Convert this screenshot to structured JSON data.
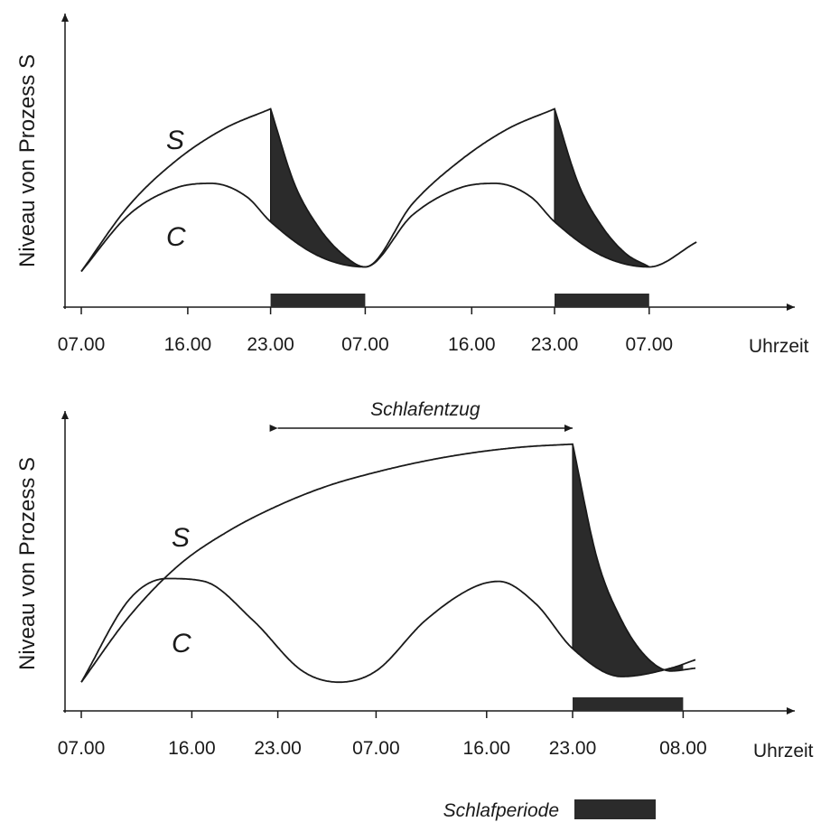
{
  "legend": {
    "label": "Schlafperiode",
    "color": "#2b2b2b"
  },
  "colors": {
    "line": "#1a1a1a",
    "shade": "#2b2b2b",
    "sleep_bar": "#2b2b2b"
  },
  "chart_data": [
    {
      "type": "line",
      "title": "",
      "xlabel": "Uhrzeit",
      "ylabel": "Niveau von Prozess S",
      "x_ticks": [
        "07.00",
        "16.00",
        "23.00",
        "07.00",
        "16.00",
        "23.00",
        "07.00"
      ],
      "x_unit": "hours since first 07.00",
      "x_tick_hours": [
        0,
        9,
        16,
        24,
        33,
        40,
        48
      ],
      "x_range_hours": [
        0,
        56
      ],
      "y_axis_values": "none",
      "curve_labels": {
        "S": "S",
        "C": "C"
      },
      "series": [
        {
          "name": "S",
          "x": [
            0,
            4,
            8,
            12,
            16,
            18,
            20,
            22,
            24,
            28,
            32,
            36,
            40,
            42,
            44,
            46,
            48
          ],
          "y": [
            0.13,
            0.42,
            0.62,
            0.76,
            0.85,
            0.52,
            0.33,
            0.21,
            0.15,
            0.43,
            0.62,
            0.76,
            0.85,
            0.52,
            0.33,
            0.21,
            0.15
          ]
        },
        {
          "name": "C",
          "x": [
            0,
            4,
            8,
            11,
            14,
            16,
            20,
            24,
            28,
            32,
            35,
            38,
            40,
            44,
            48,
            52
          ],
          "y": [
            0.13,
            0.38,
            0.5,
            0.52,
            0.46,
            0.35,
            0.2,
            0.15,
            0.38,
            0.5,
            0.52,
            0.46,
            0.35,
            0.2,
            0.15,
            0.26
          ]
        }
      ],
      "sleep_periods": [
        {
          "start_label": "23.00",
          "end_label": "07.00",
          "start_h": 16,
          "end_h": 24
        },
        {
          "start_label": "23.00",
          "end_label": "07.00",
          "start_h": 40,
          "end_h": 48
        }
      ]
    },
    {
      "type": "line",
      "title": "",
      "xlabel": "Uhrzeit",
      "ylabel": "Niveau von Prozess S",
      "x_ticks": [
        "07.00",
        "16.00",
        "23.00",
        "07.00",
        "16.00",
        "23.00",
        "08.00"
      ],
      "x_unit": "hours since first 07.00",
      "x_tick_hours": [
        0,
        9,
        16,
        24,
        33,
        40,
        49
      ],
      "x_range_hours": [
        0,
        57
      ],
      "y_axis_values": "none",
      "curve_labels": {
        "S": "S",
        "C": "C"
      },
      "annotation": {
        "label": "Schlafentzug",
        "from_h": 16,
        "to_h": 40
      },
      "series": [
        {
          "name": "S",
          "x": [
            0,
            4,
            8,
            12,
            16,
            20,
            24,
            28,
            32,
            36,
            40,
            42,
            44,
            46,
            48,
            50
          ],
          "y": [
            0.08,
            0.32,
            0.5,
            0.62,
            0.71,
            0.78,
            0.83,
            0.87,
            0.9,
            0.92,
            0.93,
            0.52,
            0.3,
            0.17,
            0.12,
            0.13
          ]
        },
        {
          "name": "C",
          "x": [
            0,
            4,
            7,
            10,
            14,
            18,
            21,
            24,
            28,
            32,
            34,
            37,
            40,
            44,
            48,
            50
          ],
          "y": [
            0.08,
            0.38,
            0.45,
            0.44,
            0.3,
            0.12,
            0.08,
            0.12,
            0.3,
            0.42,
            0.44,
            0.36,
            0.2,
            0.1,
            0.13,
            0.16
          ]
        }
      ],
      "sleep_periods": [
        {
          "start_label": "23.00",
          "end_label": "08.00",
          "start_h": 40,
          "end_h": 49
        }
      ]
    }
  ]
}
